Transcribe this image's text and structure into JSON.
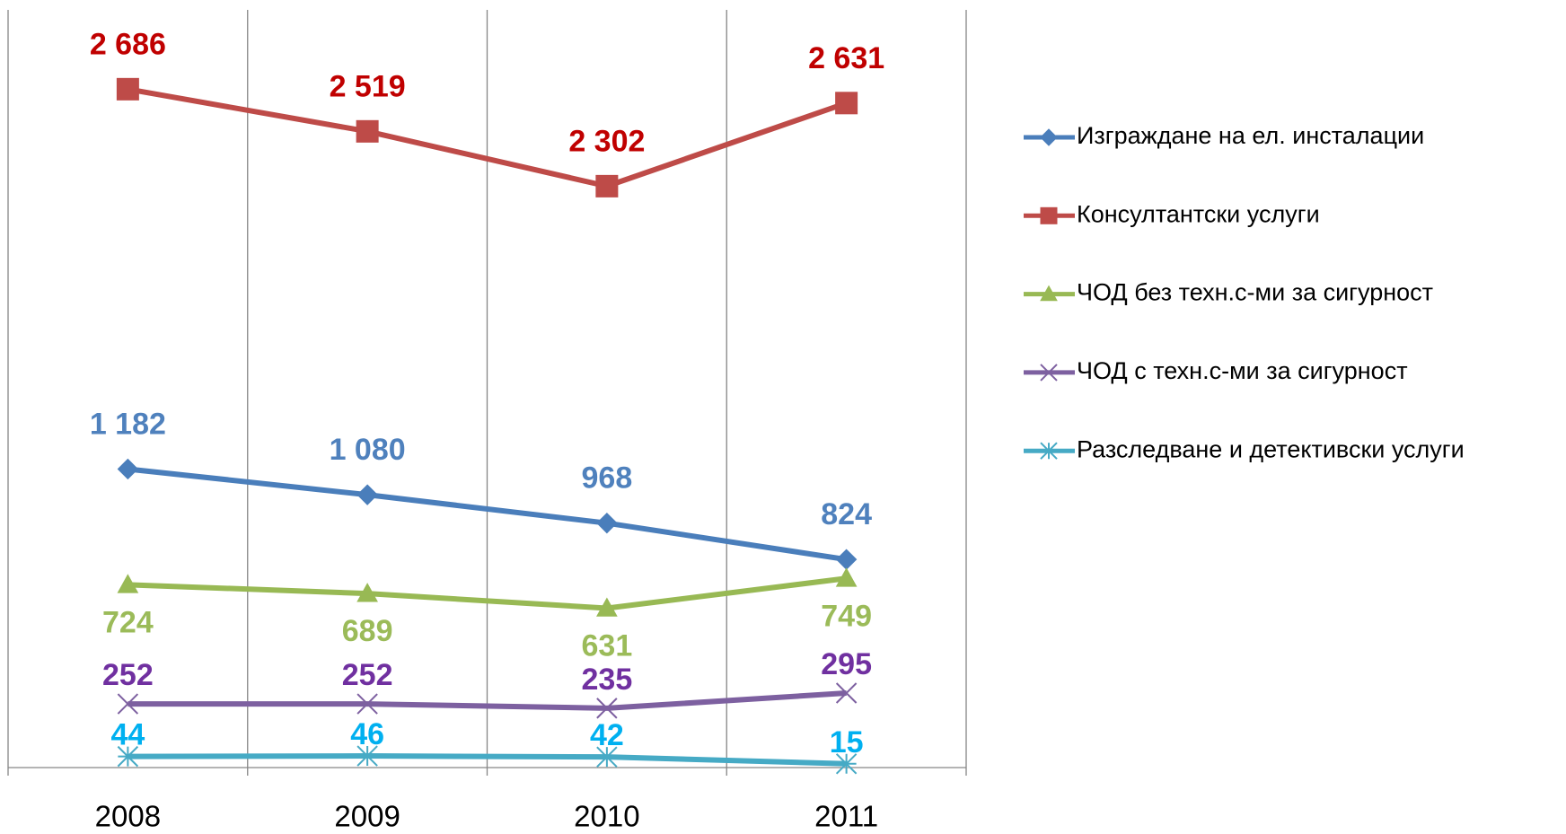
{
  "chart_data": {
    "type": "line",
    "categories": [
      "2008",
      "2009",
      "2010",
      "2011"
    ],
    "ylim": [
      0,
      3000
    ],
    "grid": true,
    "legend": "right",
    "series": [
      {
        "name": "Изграждане на ел. инсталации",
        "color": "#4a7ebb",
        "label_color": "#4f81bd",
        "marker": "diamond",
        "label_position": "above",
        "values": [
          1182,
          1080,
          968,
          824
        ],
        "value_labels": [
          "1 182",
          "1 080",
          "968",
          "824"
        ]
      },
      {
        "name": "Консултантски услуги",
        "color": "#be4b48",
        "label_color": "#c00000",
        "marker": "square",
        "label_position": "above",
        "values": [
          2686,
          2519,
          2302,
          2631
        ],
        "value_labels": [
          "2 686",
          "2 519",
          "2 302",
          "2 631"
        ]
      },
      {
        "name": "ЧОД без техн.с-ми за сигурност",
        "color": "#98b954",
        "label_color": "#9bbb59",
        "marker": "triangle",
        "label_position": "below",
        "values": [
          724,
          689,
          631,
          749
        ]
      },
      {
        "name": "ЧОД с техн.с-ми за сигурност",
        "color": "#7d60a0",
        "label_color": "#7030a0",
        "marker": "x",
        "label_position": "above",
        "values": [
          252,
          252,
          235,
          295
        ]
      },
      {
        "name": "Разследване и детективски услуги",
        "color": "#46aac5",
        "label_color": "#00b0f0",
        "marker": "star",
        "label_position": "above",
        "values": [
          44,
          46,
          42,
          15
        ]
      }
    ]
  }
}
